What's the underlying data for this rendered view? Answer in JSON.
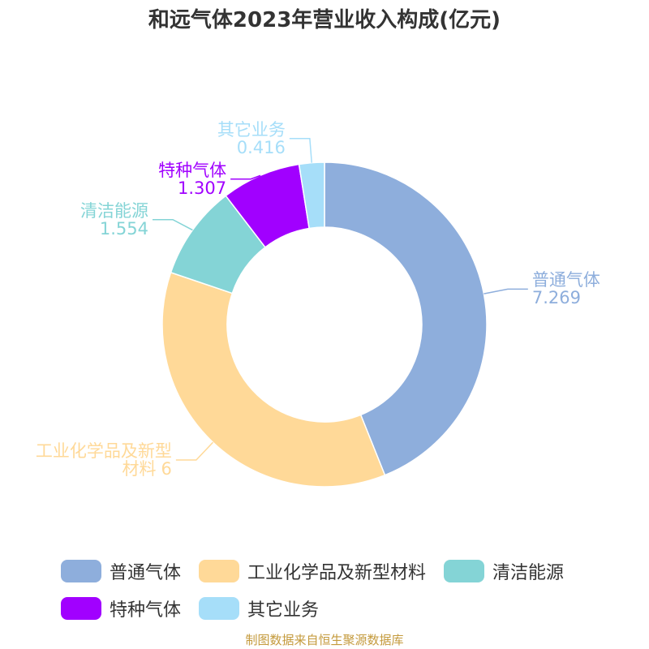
{
  "chart_data": {
    "type": "donut",
    "title": "和远气体2023年营业收入构成(亿元)",
    "categories": [
      "普通气体",
      "工业化学品及新型材料",
      "清洁能源",
      "特种气体",
      "其它业务"
    ],
    "values": [
      7.269,
      6,
      1.554,
      1.307,
      0.416
    ],
    "colors": [
      "#8eaedc",
      "#ffd998",
      "#84d4d6",
      "#a100ff",
      "#a6def9"
    ],
    "source": "制图数据来自恒生聚源数据库"
  }
}
